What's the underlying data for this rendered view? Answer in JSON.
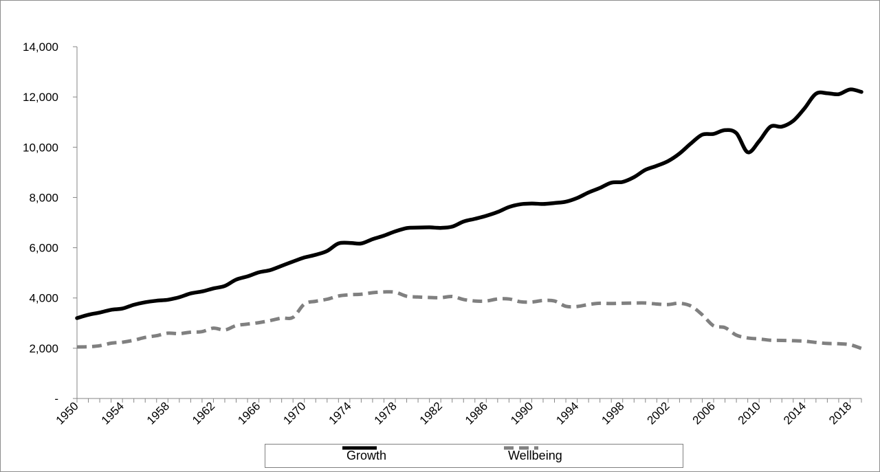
{
  "chart_data": {
    "type": "line",
    "title": "",
    "xlabel": "",
    "ylabel": "",
    "ylim": [
      0,
      14000
    ],
    "y_ticks": [
      0,
      2000,
      4000,
      6000,
      8000,
      10000,
      12000,
      14000
    ],
    "y_tick_labels": [
      "-",
      "2,000",
      "4,000",
      "6,000",
      "8,000",
      "10,000",
      "12,000",
      "14,000"
    ],
    "x_tick_labels": [
      "1950",
      "1954",
      "1958",
      "1962",
      "1966",
      "1970",
      "1974",
      "1978",
      "1982",
      "1986",
      "1990",
      "1994",
      "1998",
      "2002",
      "2006",
      "2010",
      "2014",
      "2018"
    ],
    "grid": false,
    "legend": "bottom",
    "x": [
      1950,
      1951,
      1952,
      1953,
      1954,
      1955,
      1956,
      1957,
      1958,
      1959,
      1960,
      1961,
      1962,
      1963,
      1964,
      1965,
      1966,
      1967,
      1968,
      1969,
      1970,
      1971,
      1972,
      1973,
      1974,
      1975,
      1976,
      1977,
      1978,
      1979,
      1980,
      1981,
      1982,
      1983,
      1984,
      1985,
      1986,
      1987,
      1988,
      1989,
      1990,
      1991,
      1992,
      1993,
      1994,
      1995,
      1996,
      1997,
      1998,
      1999,
      2000,
      2001,
      2002,
      2003,
      2004,
      2005,
      2006,
      2007,
      2008,
      2009,
      2010,
      2011,
      2012,
      2013,
      2014,
      2015,
      2016,
      2017,
      2018,
      2019
    ],
    "series": [
      {
        "name": "Growth",
        "color": "#000000",
        "style": "solid",
        "values": [
          3200,
          3330,
          3420,
          3530,
          3580,
          3730,
          3830,
          3890,
          3930,
          4030,
          4180,
          4260,
          4380,
          4480,
          4730,
          4860,
          5020,
          5110,
          5280,
          5450,
          5610,
          5720,
          5870,
          6170,
          6190,
          6170,
          6340,
          6480,
          6650,
          6780,
          6800,
          6810,
          6790,
          6840,
          7040,
          7150,
          7270,
          7420,
          7620,
          7730,
          7760,
          7740,
          7780,
          7830,
          7980,
          8200,
          8380,
          8590,
          8620,
          8810,
          9100,
          9260,
          9450,
          9750,
          10150,
          10500,
          10530,
          10680,
          10560,
          9800,
          10240,
          10820,
          10820,
          11050,
          11550,
          12130,
          12150,
          12110,
          12300,
          12200
        ]
      },
      {
        "name": "Wellbeing",
        "color": "#808080",
        "style": "dashed",
        "values": [
          2050,
          2060,
          2100,
          2200,
          2240,
          2320,
          2430,
          2500,
          2600,
          2580,
          2640,
          2660,
          2800,
          2730,
          2900,
          2960,
          3020,
          3100,
          3200,
          3230,
          3760,
          3870,
          3950,
          4080,
          4130,
          4150,
          4210,
          4240,
          4230,
          4070,
          4040,
          4020,
          4010,
          4060,
          3940,
          3880,
          3880,
          3960,
          3960,
          3850,
          3840,
          3900,
          3880,
          3670,
          3660,
          3740,
          3790,
          3780,
          3790,
          3800,
          3800,
          3760,
          3740,
          3790,
          3680,
          3330,
          2890,
          2820,
          2520,
          2410,
          2370,
          2320,
          2310,
          2300,
          2280,
          2230,
          2190,
          2180,
          2140,
          1990
        ]
      }
    ]
  }
}
